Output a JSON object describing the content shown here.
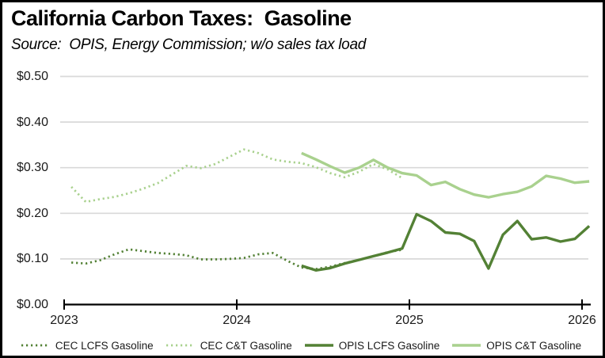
{
  "frame": {
    "background": "#ffffff",
    "border_color": "#000000"
  },
  "chart_data": {
    "type": "line",
    "title": "California Carbon Taxes:  Gasoline",
    "subtitle": "Source:  OPIS, Energy Commission; w/o sales tax load",
    "x_unit": "months (Jan 2023 = offset 0)",
    "grid": "horizontal",
    "legend_position": "bottom",
    "colors": {
      "dark_green": "#538135",
      "light_green": "#a9d18e",
      "gridline": "#d9d9d9",
      "axis": "#000000",
      "text": "#1a1a1a"
    },
    "y_axis": {
      "min": 0.0,
      "max": 0.5,
      "ticks": [
        {
          "label": "$0.00",
          "value": 0.0
        },
        {
          "label": "$0.10",
          "value": 0.1
        },
        {
          "label": "$0.20",
          "value": 0.2
        },
        {
          "label": "$0.30",
          "value": 0.3
        },
        {
          "label": "$0.40",
          "value": 0.4
        },
        {
          "label": "$0.50",
          "value": 0.5
        }
      ]
    },
    "x_axis": {
      "ticks": [
        {
          "label": "2023",
          "month_offset": 0
        },
        {
          "label": "2024",
          "month_offset": 12
        },
        {
          "label": "2025",
          "month_offset": 24
        },
        {
          "label": "2026",
          "month_offset": 36
        }
      ]
    },
    "series": [
      {
        "name": "CEC LCFS Gasoline",
        "line_style": "dotted",
        "color": "#538135",
        "start": "Jan 2023",
        "start_month": 0,
        "values": [
          0.092,
          0.09,
          0.097,
          0.11,
          0.121,
          0.117,
          0.113,
          0.111,
          0.108,
          0.099,
          0.099,
          0.1,
          0.102,
          0.11,
          0.113,
          0.096,
          0.081,
          0.078,
          0.083,
          0.091,
          0.098,
          0.106,
          0.115,
          0.12
        ]
      },
      {
        "name": "CEC C&T Gasoline",
        "line_style": "dotted",
        "color": "#a9d18e",
        "start": "Jan 2023",
        "start_month": 0,
        "values": [
          0.258,
          0.225,
          0.231,
          0.236,
          0.244,
          0.254,
          0.266,
          0.285,
          0.304,
          0.299,
          0.308,
          0.324,
          0.34,
          0.332,
          0.318,
          0.313,
          0.31,
          0.301,
          0.288,
          0.279,
          0.291,
          0.308,
          0.296,
          0.277
        ]
      },
      {
        "name": "OPIS LCFS Gasoline",
        "line_style": "solid",
        "color": "#538135",
        "start": "May 2024",
        "start_month": 16,
        "values": [
          0.085,
          0.075,
          0.08,
          0.09,
          0.098,
          0.106,
          0.114,
          0.123,
          0.198,
          0.183,
          0.158,
          0.155,
          0.139,
          0.079,
          0.153,
          0.183,
          0.143,
          0.147,
          0.138,
          0.144,
          0.172
        ]
      },
      {
        "name": "OPIS C&T Gasoline",
        "line_style": "solid",
        "color": "#a9d18e",
        "start": "May 2024",
        "start_month": 16,
        "values": [
          0.332,
          0.318,
          0.303,
          0.289,
          0.3,
          0.317,
          0.3,
          0.288,
          0.283,
          0.262,
          0.269,
          0.253,
          0.241,
          0.235,
          0.242,
          0.247,
          0.259,
          0.282,
          0.276,
          0.267,
          0.27
        ]
      }
    ]
  }
}
